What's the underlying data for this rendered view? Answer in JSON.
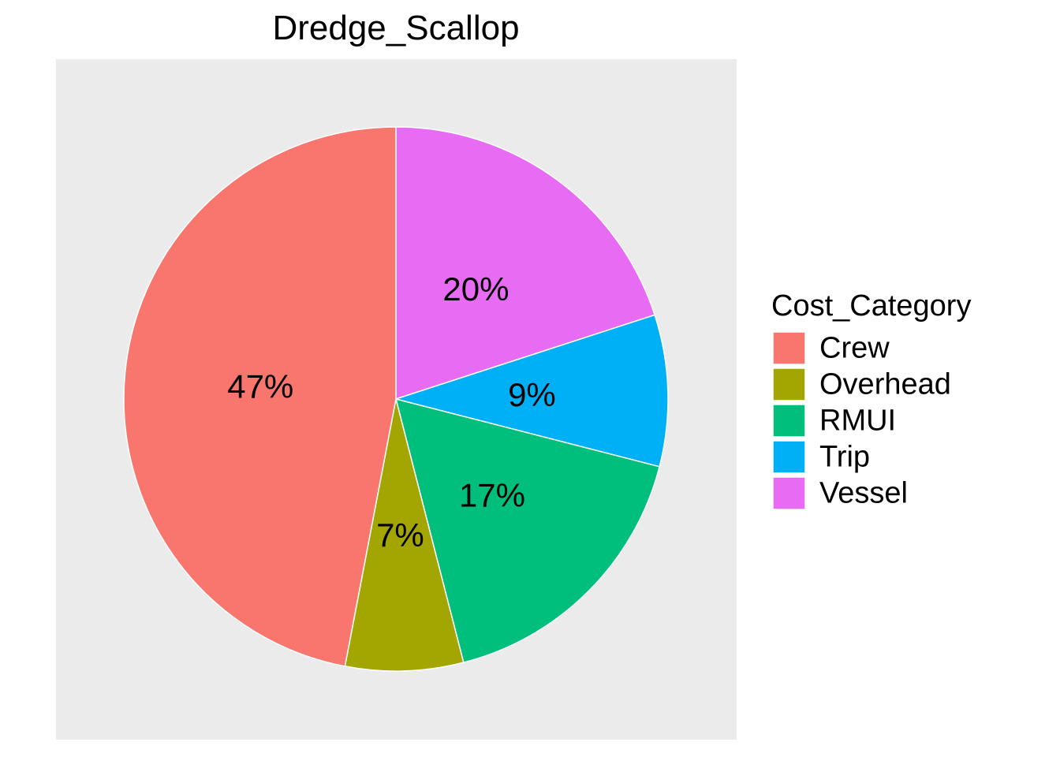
{
  "chart_data": {
    "type": "pie",
    "title": "Dredge_Scallop",
    "legend_title": "Cost_Category",
    "legend_position": "right",
    "categories": [
      "Crew",
      "Overhead",
      "RMUI",
      "Trip",
      "Vessel"
    ],
    "values": [
      47,
      7,
      17,
      9,
      20
    ],
    "labels": [
      "47%",
      "7%",
      "17%",
      "9%",
      "20%"
    ],
    "colors": [
      "#F8766D",
      "#A3A500",
      "#00BF7D",
      "#00B0F6",
      "#E76BF3"
    ],
    "panel_background": "#EBEBEB"
  }
}
